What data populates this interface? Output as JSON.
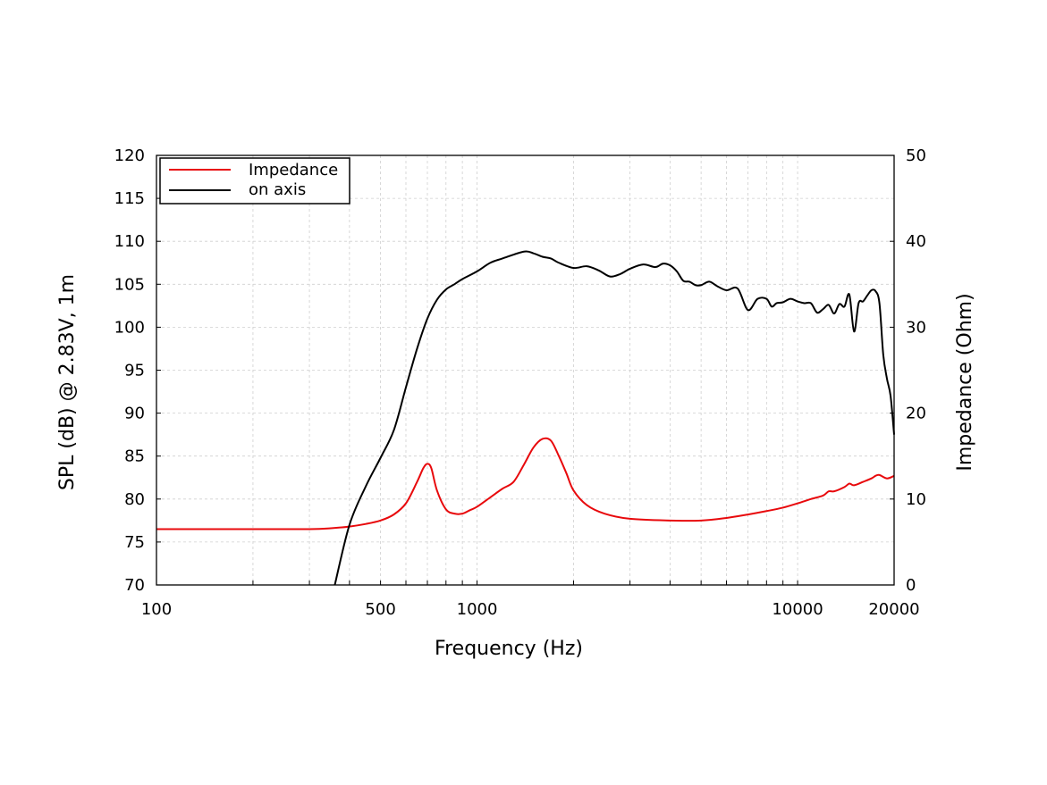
{
  "chart_data": {
    "type": "line",
    "title": "",
    "xlabel": "Frequency (Hz)",
    "ylabel": "SPL (dB) @ 2.83V, 1m",
    "y2label": "Impedance (Ohm)",
    "xscale": "log",
    "xlim": [
      100,
      20000
    ],
    "ylim": [
      70,
      120
    ],
    "y2lim": [
      0,
      50
    ],
    "grid": true,
    "legend_position": "top-left",
    "x_tick_labels": [
      "100",
      "500",
      "1000",
      "10000",
      "20000"
    ],
    "x_ticks": [
      100,
      500,
      1000,
      10000,
      20000
    ],
    "y_ticks": [
      70,
      75,
      80,
      85,
      90,
      95,
      100,
      105,
      110,
      115,
      120
    ],
    "y_tick_labels": [
      "70",
      "75",
      "80",
      "85",
      "90",
      "95",
      "100",
      "105",
      "110",
      "115",
      "120"
    ],
    "y2_ticks": [
      0,
      10,
      20,
      30,
      40,
      50
    ],
    "y2_tick_labels": [
      "0",
      "10",
      "20",
      "30",
      "40",
      "50"
    ],
    "series": [
      {
        "name": "Impedance",
        "color": "#e8090c",
        "axis": "right",
        "x": [
          100,
          200,
          300,
          350,
          400,
          450,
          500,
          550,
          600,
          650,
          680,
          700,
          720,
          750,
          800,
          850,
          900,
          950,
          1000,
          1100,
          1200,
          1300,
          1400,
          1500,
          1600,
          1700,
          1800,
          1900,
          2000,
          2200,
          2500,
          3000,
          4000,
          5000,
          6000,
          7000,
          8000,
          9000,
          10000,
          11000,
          12000,
          12500,
          13000,
          14000,
          14500,
          15000,
          16000,
          17000,
          17500,
          18000,
          19000,
          20000
        ],
        "y": [
          6.5,
          6.5,
          6.5,
          6.6,
          6.8,
          7.1,
          7.5,
          8.2,
          9.5,
          12.0,
          13.6,
          14.1,
          13.6,
          11.0,
          8.8,
          8.3,
          8.3,
          8.7,
          9.1,
          10.2,
          11.2,
          12.0,
          14.0,
          16.0,
          17.0,
          16.8,
          15.0,
          13.0,
          11.0,
          9.3,
          8.3,
          7.7,
          7.5,
          7.5,
          7.8,
          8.2,
          8.6,
          9.0,
          9.5,
          10.0,
          10.4,
          10.9,
          10.9,
          11.4,
          11.8,
          11.6,
          12.0,
          12.4,
          12.7,
          12.8,
          12.4,
          12.7
        ]
      },
      {
        "name": "on axis",
        "color": "#000000",
        "axis": "left",
        "x": [
          360,
          400,
          450,
          500,
          550,
          600,
          650,
          700,
          750,
          800,
          850,
          900,
          1000,
          1100,
          1200,
          1400,
          1500,
          1600,
          1700,
          1800,
          2000,
          2200,
          2400,
          2600,
          2800,
          3000,
          3300,
          3600,
          3800,
          4000,
          4200,
          4400,
          4600,
          4800,
          5000,
          5300,
          5600,
          6000,
          6500,
          7000,
          7500,
          8000,
          8300,
          8600,
          9000,
          9500,
          10000,
          10500,
          11000,
          11500,
          12000,
          12500,
          13000,
          13500,
          14000,
          14500,
          15000,
          15500,
          16000,
          16500,
          17000,
          17500,
          18000,
          18500,
          19000,
          19500,
          20000
        ],
        "y": [
          70.0,
          77.0,
          81.5,
          84.8,
          88.0,
          93.0,
          97.5,
          101.0,
          103.2,
          104.4,
          105.0,
          105.6,
          106.5,
          107.5,
          108.0,
          108.8,
          108.6,
          108.2,
          108.0,
          107.5,
          106.9,
          107.1,
          106.6,
          105.9,
          106.2,
          106.8,
          107.3,
          107.0,
          107.4,
          107.2,
          106.5,
          105.4,
          105.3,
          104.9,
          104.9,
          105.3,
          104.8,
          104.3,
          104.5,
          102.0,
          103.3,
          103.3,
          102.4,
          102.8,
          102.9,
          103.3,
          103.0,
          102.8,
          102.8,
          101.7,
          102.1,
          102.6,
          101.6,
          102.7,
          102.4,
          103.8,
          99.5,
          102.8,
          103.0,
          103.7,
          104.3,
          104.2,
          102.8,
          96.8,
          94.0,
          92.0,
          87.5
        ]
      }
    ]
  }
}
